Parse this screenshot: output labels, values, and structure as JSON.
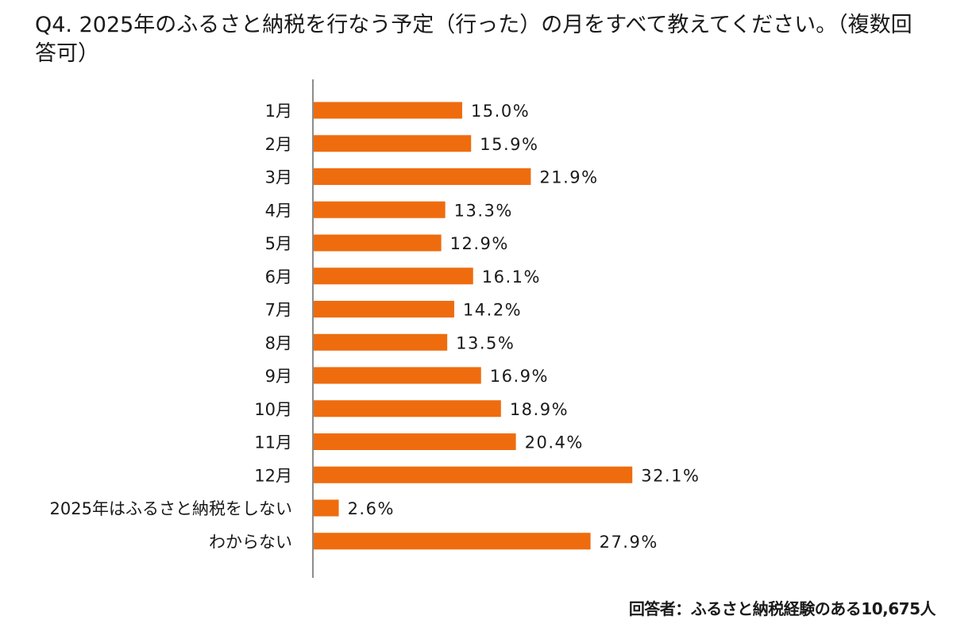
{
  "title": "Q4. 2025年のふるさと納税を行なう予定（行った）の月をすべて教えてください。（複数回答可）",
  "footnote": "回答者：ふるさと納税経験のある10,675人",
  "colors": {
    "bar": "#EF6C0E",
    "axis": "#8c8c8c",
    "text": "#1a1a1a"
  },
  "chart_data": {
    "type": "bar",
    "orientation": "horizontal",
    "categories": [
      "1月",
      "2月",
      "3月",
      "4月",
      "5月",
      "6月",
      "7月",
      "8月",
      "9月",
      "10月",
      "11月",
      "12月",
      "2025年はふるさと納税をしない",
      "わからない"
    ],
    "values": [
      15.0,
      15.9,
      21.9,
      13.3,
      12.9,
      16.1,
      14.2,
      13.5,
      16.9,
      18.9,
      20.4,
      32.1,
      2.6,
      27.9
    ],
    "data_labels": [
      "15.0%",
      "15.9%",
      "21.9%",
      "13.3%",
      "12.9%",
      "16.1%",
      "14.2%",
      "13.5%",
      "16.9%",
      "18.9%",
      "20.4%",
      "32.1%",
      "2.6%",
      "27.9%"
    ],
    "unit": "%",
    "xlim": [
      0,
      35
    ],
    "grid": false,
    "legend": "none"
  }
}
